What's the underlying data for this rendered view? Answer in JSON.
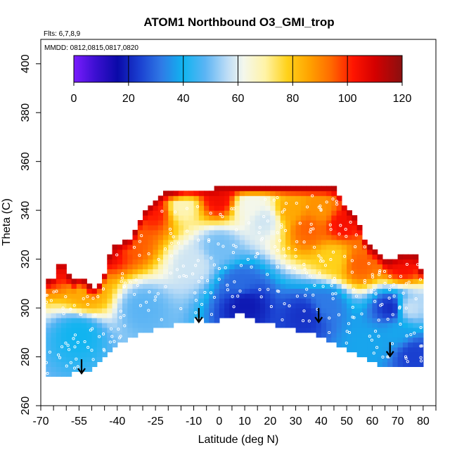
{
  "chart_data": {
    "type": "heatmap",
    "title": "ATOM1 Northbound O3_GMI_trop",
    "annotations": {
      "flights": "Flts: 6,7,8,9",
      "dates": "MMDD: 0812,0815,0817,0820"
    },
    "xlabel": "Latitude (deg N)",
    "ylabel": "Theta (C)",
    "xlim": [
      -70,
      85
    ],
    "ylim": [
      260,
      410
    ],
    "x_ticks": [
      -70,
      -55,
      -40,
      -25,
      -10,
      0,
      10,
      20,
      30,
      40,
      50,
      60,
      70,
      80
    ],
    "x_tick_labels": [
      "-70",
      "-55",
      "-40",
      "-25",
      "-10",
      "0",
      "10",
      "20",
      "30",
      "40",
      "50",
      "60",
      "70",
      "80"
    ],
    "x_minor_ticks": [
      -65,
      -60,
      -50,
      -45,
      -35,
      -30,
      -20,
      -15,
      -5,
      5,
      15,
      25,
      35,
      45,
      55,
      65,
      75,
      85
    ],
    "y_ticks": [
      260,
      280,
      300,
      320,
      340,
      360,
      380,
      400
    ],
    "y_tick_labels": [
      "260",
      "280",
      "300",
      "320",
      "340",
      "360",
      "380",
      "400"
    ],
    "colorbar": {
      "range": [
        0,
        120
      ],
      "ticks": [
        0,
        20,
        40,
        60,
        80,
        100,
        120
      ],
      "tick_labels": [
        "0",
        "20",
        "40",
        "60",
        "80",
        "100",
        "120"
      ],
      "stops": [
        {
          "v": 0,
          "c": "#7a1cff"
        },
        {
          "v": 8,
          "c": "#3b0fd0"
        },
        {
          "v": 16,
          "c": "#0a0aa8"
        },
        {
          "v": 24,
          "c": "#1a3fd0"
        },
        {
          "v": 32,
          "c": "#2f7ae6"
        },
        {
          "v": 40,
          "c": "#10b4f0"
        },
        {
          "v": 48,
          "c": "#5bb4f4"
        },
        {
          "v": 56,
          "c": "#bcdcf6"
        },
        {
          "v": 62,
          "c": "#f4f7ec"
        },
        {
          "v": 70,
          "c": "#fff3a6"
        },
        {
          "v": 78,
          "c": "#ffd21a"
        },
        {
          "v": 86,
          "c": "#ffa300"
        },
        {
          "v": 94,
          "c": "#ff6a00"
        },
        {
          "v": 102,
          "c": "#ff1500"
        },
        {
          "v": 110,
          "c": "#d40000"
        },
        {
          "v": 120,
          "c": "#8a1010"
        }
      ]
    },
    "data_envelope": {
      "lat": [
        -68,
        -65,
        -62,
        -58,
        -54,
        -50,
        -46,
        -42,
        -38,
        -34,
        -30,
        -26,
        -22,
        -18,
        -14,
        -10,
        -6,
        -2,
        2,
        6,
        10,
        14,
        18,
        22,
        26,
        30,
        34,
        38,
        42,
        46,
        50,
        54,
        58,
        62,
        66,
        70,
        74,
        78,
        80
      ],
      "bottom": [
        272,
        272,
        273,
        274,
        275,
        276,
        279,
        283,
        287,
        289,
        291,
        292,
        293,
        294,
        295,
        296,
        296,
        295,
        297,
        298,
        298,
        296,
        295,
        294,
        293,
        292,
        291,
        290,
        288,
        286,
        284,
        282,
        280,
        278,
        277,
        276,
        276,
        276,
        276
      ],
      "top": [
        310,
        312,
        320,
        310,
        312,
        307,
        310,
        324,
        326,
        328,
        338,
        342,
        346,
        347,
        348,
        348,
        348,
        348,
        349,
        349,
        349,
        349,
        349,
        349,
        349,
        349,
        349,
        349,
        349,
        348,
        340,
        336,
        325,
        322,
        318,
        320,
        321,
        320,
        310
      ]
    },
    "features": [
      {
        "lat": -60,
        "theta": 318,
        "value": 105
      },
      {
        "lat": -52,
        "theta": 306,
        "value": 85
      },
      {
        "lat": -44,
        "theta": 326,
        "value": 110
      },
      {
        "lat": -35,
        "theta": 328,
        "value": 95
      },
      {
        "lat": -25,
        "theta": 340,
        "value": 102
      },
      {
        "lat": -15,
        "theta": 342,
        "value": 68
      },
      {
        "lat": 0,
        "theta": 345,
        "value": 105
      },
      {
        "lat": 12,
        "theta": 342,
        "value": 62
      },
      {
        "lat": 18,
        "theta": 336,
        "value": 58
      },
      {
        "lat": 28,
        "theta": 340,
        "value": 85
      },
      {
        "lat": 35,
        "theta": 333,
        "value": 95
      },
      {
        "lat": 40,
        "theta": 340,
        "value": 88
      },
      {
        "lat": 48,
        "theta": 335,
        "value": 104
      },
      {
        "lat": 45,
        "theta": 320,
        "value": 78
      },
      {
        "lat": 55,
        "theta": 318,
        "value": 95
      },
      {
        "lat": 72,
        "theta": 318,
        "value": 104
      },
      {
        "lat": 74,
        "theta": 300,
        "value": 58
      },
      {
        "lat": -10,
        "theta": 318,
        "value": 58
      },
      {
        "lat": 0,
        "theta": 325,
        "value": 50
      },
      {
        "lat": 8,
        "theta": 310,
        "value": 30
      },
      {
        "lat": 10,
        "theta": 302,
        "value": 18
      },
      {
        "lat": 34,
        "theta": 297,
        "value": 22
      },
      {
        "lat": 42,
        "theta": 302,
        "value": 32
      },
      {
        "lat": 68,
        "theta": 300,
        "value": 20
      },
      {
        "lat": 70,
        "theta": 290,
        "value": 38
      },
      {
        "lat": -55,
        "theta": 290,
        "value": 40
      },
      {
        "lat": -30,
        "theta": 300,
        "value": 48
      },
      {
        "lat": 60,
        "theta": 285,
        "value": 38
      },
      {
        "lat": 76,
        "theta": 281,
        "value": 24
      }
    ],
    "arrows": [
      {
        "lat": -54,
        "theta": 279
      },
      {
        "lat": -8,
        "theta": 300
      },
      {
        "lat": 39,
        "theta": 300
      },
      {
        "lat": 67,
        "theta": 286
      }
    ]
  }
}
